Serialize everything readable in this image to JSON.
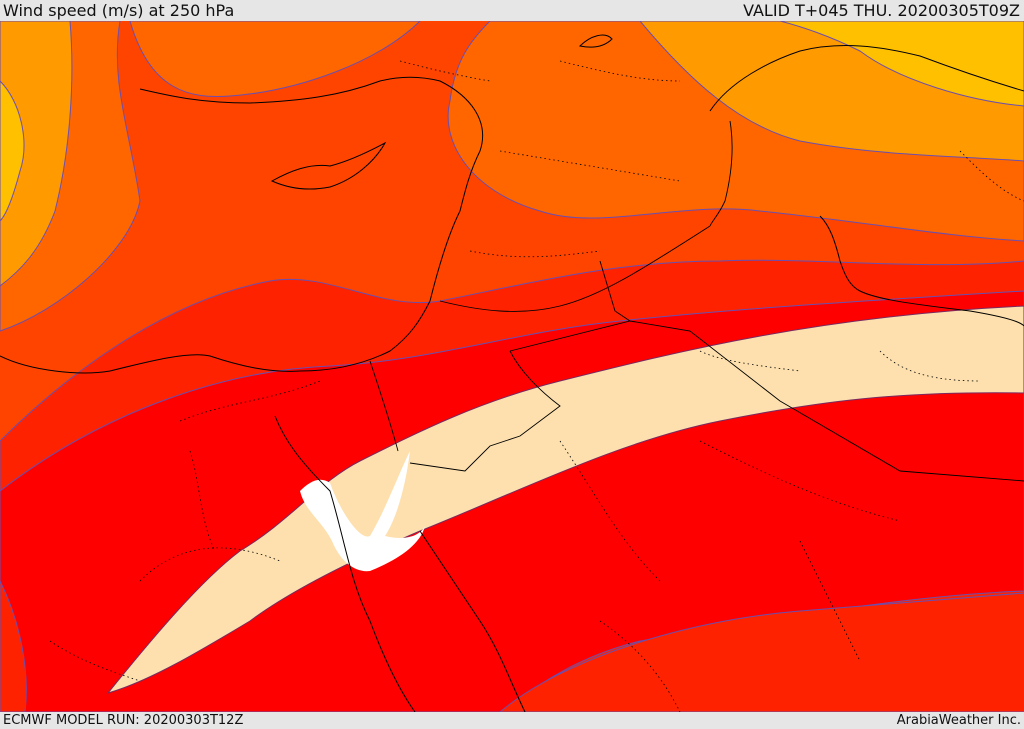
{
  "header": {
    "title": "Wind speed (m/s) at 250 hPa",
    "valid": "VALID T+045 THU. 20200305T09Z"
  },
  "footer": {
    "model_run": "ECMWF MODEL RUN: 20200303T12Z",
    "brand": "ArabiaWeather Inc."
  },
  "map": {
    "variable": "wind speed",
    "level_hpa": 250,
    "units": "m/s",
    "colors": {
      "yellow": "#ffc000",
      "light_orange": "#ff9a00",
      "orange": "#ff6600",
      "dark_orange": "#ff4400",
      "red_orange": "#ff2200",
      "red": "#ff0000",
      "jet_core": "#fde0ae",
      "contour": "#6a4fb0"
    }
  }
}
